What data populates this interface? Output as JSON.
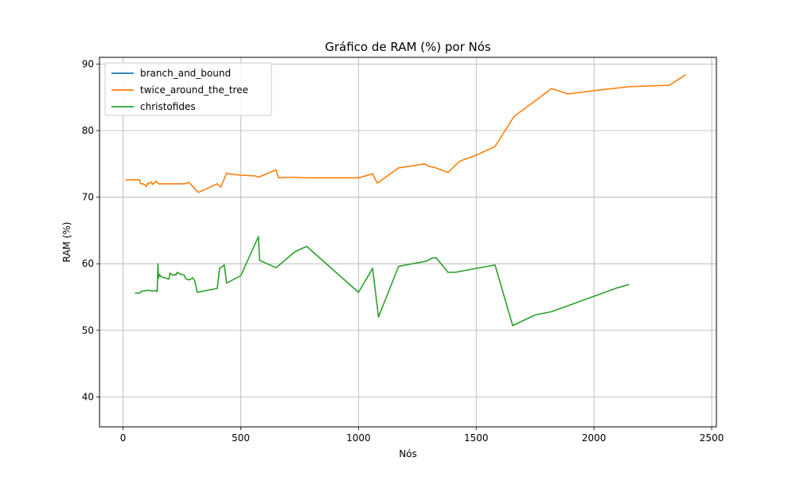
{
  "chart_data": {
    "type": "line",
    "title": "Gráfico de RAM (%) por Nós",
    "xlabel": "Nós",
    "ylabel": "RAM (%)",
    "xlim": [
      -100,
      2520
    ],
    "ylim": [
      35.5,
      91
    ],
    "xticks": [
      0,
      500,
      1000,
      1500,
      2000,
      2500
    ],
    "yticks": [
      40,
      50,
      60,
      70,
      80,
      90
    ],
    "grid": true,
    "legend_position": "top-left",
    "series": [
      {
        "name": "branch_and_bound",
        "color": "#1f77b4",
        "x": [],
        "y": []
      },
      {
        "name": "twice_around_the_tree",
        "color": "#ff7f0e",
        "x": [
          10,
          70,
          75,
          85,
          95,
          100,
          105,
          110,
          120,
          125,
          130,
          140,
          150,
          155,
          180,
          210,
          240,
          260,
          280,
          320,
          400,
          415,
          440,
          450,
          500,
          560,
          575,
          650,
          660,
          720,
          780,
          900,
          1000,
          1060,
          1080,
          1170,
          1280,
          1300,
          1320,
          1380,
          1430,
          1500,
          1580,
          1660,
          1820,
          1890,
          2000,
          2100,
          2150,
          2320,
          2390
        ],
        "y": [
          72.6,
          72.6,
          72.0,
          72.0,
          71.8,
          71.6,
          72.1,
          72.0,
          72.3,
          71.9,
          72.1,
          72.4,
          72.0,
          72.0,
          72.0,
          72.0,
          72.0,
          72.0,
          72.2,
          70.7,
          72.0,
          71.5,
          73.6,
          73.5,
          73.3,
          73.2,
          73.0,
          74.1,
          72.9,
          73.0,
          72.9,
          72.9,
          72.9,
          73.5,
          72.1,
          74.4,
          75.0,
          74.6,
          74.5,
          73.7,
          75.4,
          76.3,
          77.6,
          82.1,
          86.3,
          85.5,
          86.0,
          86.4,
          86.6,
          86.8,
          88.4
        ]
      },
      {
        "name": "christofides",
        "color": "#2ca02c",
        "x": [
          50,
          60,
          70,
          80,
          90,
          100,
          110,
          120,
          130,
          140,
          145,
          148,
          150,
          155,
          160,
          175,
          195,
          200,
          210,
          215,
          220,
          225,
          230,
          245,
          260,
          265,
          275,
          285,
          295,
          305,
          315,
          400,
          410,
          430,
          440,
          500,
          575,
          580,
          650,
          730,
          780,
          1000,
          1060,
          1085,
          1170,
          1290,
          1310,
          1330,
          1380,
          1410,
          1500,
          1580,
          1655,
          1750,
          1820,
          2100,
          2150
        ],
        "y": [
          55.6,
          55.6,
          55.6,
          55.9,
          55.9,
          56.0,
          56.0,
          55.9,
          55.9,
          56.0,
          55.8,
          60.0,
          57.8,
          58.4,
          58.1,
          57.9,
          57.7,
          58.6,
          58.3,
          58.3,
          58.4,
          58.3,
          58.7,
          58.4,
          58.3,
          57.8,
          57.6,
          57.6,
          57.9,
          57.4,
          55.7,
          56.3,
          59.3,
          59.8,
          57.1,
          58.2,
          64.1,
          60.5,
          59.4,
          61.8,
          62.6,
          55.7,
          59.3,
          52.0,
          59.6,
          60.4,
          60.8,
          60.9,
          58.7,
          58.7,
          59.3,
          59.8,
          50.7,
          52.3,
          52.8,
          56.4,
          56.9
        ]
      }
    ]
  }
}
